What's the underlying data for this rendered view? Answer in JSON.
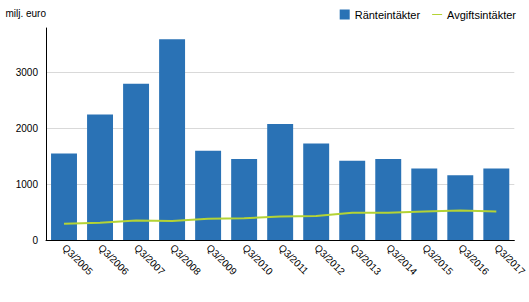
{
  "chart_data": {
    "type": "bar",
    "y_label": "milj. euro",
    "categories": [
      "Q3/2005",
      "Q3/2006",
      "Q3/2007",
      "Q3/2008",
      "Q3/2009",
      "Q3/2010",
      "Q3/2011",
      "Q3/2012",
      "Q3/2013",
      "Q3/2014",
      "Q3/2015",
      "Q3/2016",
      "Q3/2017"
    ],
    "series": [
      {
        "name": "Ränteintäkter",
        "type": "bar",
        "color": "#2a72b5",
        "values": [
          1550,
          2250,
          2800,
          3600,
          1600,
          1450,
          2080,
          1730,
          1420,
          1450,
          1280,
          1160,
          1280
        ]
      },
      {
        "name": "Avgiftsintäkter",
        "type": "line",
        "color": "#b4d335",
        "values": [
          290,
          310,
          350,
          340,
          380,
          390,
          420,
          430,
          490,
          490,
          510,
          530,
          510
        ]
      }
    ],
    "ylim": [
      0,
      3800
    ],
    "yticks": [
      0,
      1000,
      2000,
      3000
    ],
    "grid": true,
    "legend": "top-right"
  }
}
